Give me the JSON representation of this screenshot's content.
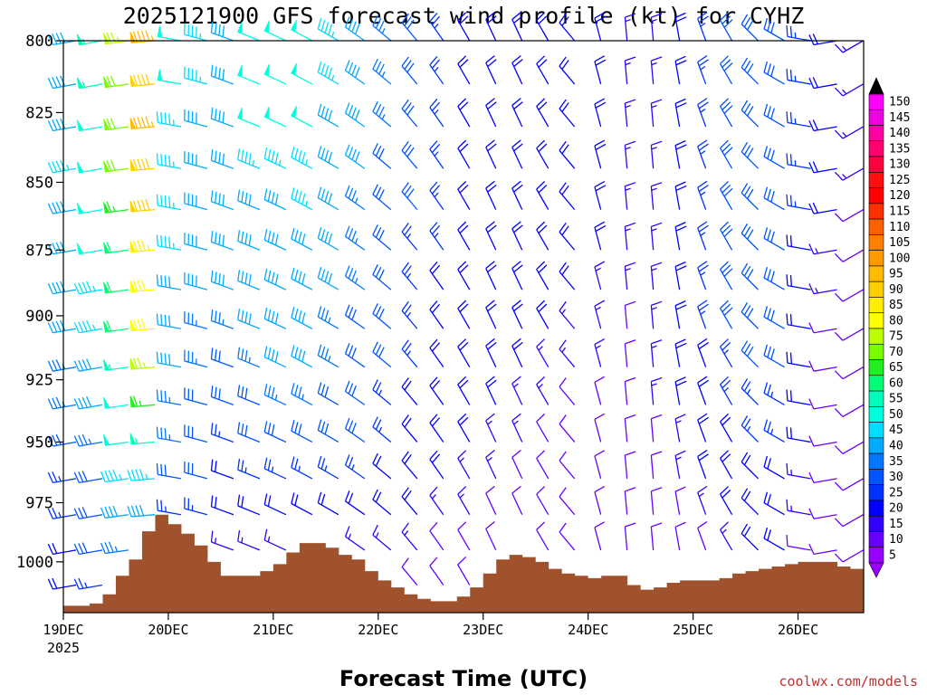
{
  "chart_data": {
    "type": "wind-profile",
    "title": "2025121900 GFS forecast wind profile (kt) for CYHZ",
    "xlabel": "Forecast Time (UTC)",
    "credit": "coolwx.com/models",
    "y_axis": {
      "label_values": [
        "800",
        "825",
        "850",
        "875",
        "900",
        "925",
        "950",
        "975",
        "1000"
      ],
      "range_hpa": [
        800,
        1022
      ],
      "inverted": true
    },
    "x_axis": {
      "tick_labels": [
        "19DEC",
        "20DEC",
        "21DEC",
        "22DEC",
        "23DEC",
        "24DEC",
        "25DEC",
        "26DEC"
      ],
      "year_label": "2025",
      "tick_hours": [
        0,
        24,
        48,
        72,
        96,
        120,
        144,
        168
      ],
      "range_hours": [
        0,
        183
      ]
    },
    "colorbar": {
      "labels": [
        "150",
        "145",
        "140",
        "135",
        "130",
        "125",
        "120",
        "115",
        "110",
        "105",
        "100",
        "95",
        "90",
        "85",
        "80",
        "75",
        "70",
        "65",
        "60",
        "55",
        "50",
        "45",
        "40",
        "35",
        "30",
        "25",
        "20",
        "15",
        "10",
        "5"
      ],
      "colors": [
        "#ff00ff",
        "#ee00e0",
        "#ff00a0",
        "#ff0070",
        "#ff0040",
        "#ff1010",
        "#ff0000",
        "#ff3000",
        "#ff6000",
        "#ff8000",
        "#ff9900",
        "#ffbb00",
        "#ffd000",
        "#ffee00",
        "#ffff00",
        "#bbff00",
        "#77ff00",
        "#22ee22",
        "#00ff77",
        "#00ffbb",
        "#00ffdd",
        "#00ddff",
        "#00aaff",
        "#0077ff",
        "#0055ff",
        "#0033ff",
        "#0000ff",
        "#3300ff",
        "#6600ff",
        "#9900ff"
      ]
    },
    "terrain": {
      "color": "#a0522d",
      "hours": [
        0,
        3,
        6,
        9,
        12,
        15,
        18,
        21,
        24,
        27,
        30,
        33,
        36,
        39,
        42,
        45,
        48,
        51,
        54,
        57,
        60,
        63,
        66,
        69,
        72,
        75,
        78,
        81,
        84,
        87,
        90,
        93,
        96,
        99,
        102,
        105,
        108,
        111,
        114,
        117,
        120,
        123,
        126,
        129,
        132,
        135,
        138,
        141,
        144,
        147,
        150,
        153,
        156,
        159,
        162,
        165,
        168,
        171,
        174,
        177,
        180,
        183
      ],
      "surface_hpa": [
        1019,
        1019,
        1018,
        1014,
        1006,
        999,
        987,
        980,
        984,
        988,
        993,
        1000,
        1006,
        1006,
        1006,
        1004,
        1001,
        996,
        992,
        992,
        994,
        997,
        999,
        1004,
        1008,
        1011,
        1014,
        1016,
        1017,
        1017,
        1015,
        1011,
        1005,
        999,
        997,
        998,
        1000,
        1003,
        1005,
        1006,
        1007,
        1006,
        1006,
        1010,
        1012,
        1011,
        1009,
        1008,
        1008,
        1008,
        1007,
        1005,
        1004,
        1003,
        1002,
        1001,
        1000,
        1000,
        1000,
        1002,
        1003,
        1003
      ]
    },
    "wind_levels_hpa": [
      800,
      815,
      830,
      845,
      860,
      875,
      890,
      905,
      920,
      935,
      950,
      965,
      980,
      995,
      1010
    ],
    "wind_hours": [
      0,
      6,
      12,
      18,
      24,
      30,
      36,
      42,
      48,
      54,
      60,
      66,
      72,
      78,
      84,
      90,
      96,
      102,
      108,
      114,
      120,
      126,
      132,
      138,
      144,
      150,
      156,
      162,
      168,
      174,
      180
    ],
    "wind_speed_kt": {
      "0": [
        42,
        42,
        42,
        45,
        42,
        42,
        40,
        38,
        35,
        33,
        30,
        27,
        25,
        22,
        20
      ],
      "6": [
        55,
        55,
        52,
        52,
        50,
        48,
        45,
        43,
        40,
        38,
        35,
        32,
        30,
        28,
        25
      ],
      "12": [
        75,
        72,
        72,
        70,
        65,
        62,
        60,
        58,
        55,
        52,
        48,
        45,
        40,
        35,
        30
      ],
      "18": [
        95,
        92,
        95,
        90,
        88,
        85,
        82,
        80,
        75,
        65,
        55,
        45,
        40,
        35,
        30
      ],
      "24": [
        50,
        48,
        47,
        46,
        45,
        43,
        42,
        40,
        38,
        36,
        34,
        30,
        25,
        20,
        15
      ],
      "30": [
        45,
        45,
        42,
        42,
        40,
        40,
        38,
        36,
        34,
        32,
        30,
        28,
        25,
        20,
        15
      ],
      "36": [
        42,
        42,
        42,
        40,
        38,
        38,
        38,
        35,
        32,
        30,
        25,
        22,
        20,
        15,
        12
      ],
      "42": [
        48,
        48,
        48,
        45,
        42,
        40,
        40,
        38,
        35,
        32,
        30,
        25,
        20,
        15,
        10
      ],
      "48": [
        48,
        48,
        48,
        45,
        42,
        42,
        40,
        40,
        38,
        35,
        30,
        25,
        20,
        15,
        10
      ],
      "54": [
        50,
        48,
        48,
        45,
        45,
        42,
        40,
        40,
        38,
        35,
        30,
        25,
        20,
        15,
        10
      ],
      "60": [
        45,
        45,
        42,
        40,
        40,
        38,
        38,
        35,
        35,
        32,
        30,
        25,
        20,
        15,
        10
      ],
      "66": [
        40,
        40,
        40,
        38,
        35,
        35,
        35,
        32,
        30,
        30,
        28,
        25,
        20,
        15,
        10
      ],
      "72": [
        35,
        35,
        35,
        32,
        30,
        30,
        30,
        28,
        28,
        25,
        25,
        22,
        20,
        15,
        10
      ],
      "78": [
        30,
        30,
        30,
        28,
        28,
        25,
        25,
        25,
        25,
        22,
        20,
        20,
        18,
        15,
        10
      ],
      "84": [
        25,
        25,
        25,
        25,
        25,
        25,
        22,
        22,
        22,
        20,
        20,
        18,
        15,
        12,
        10
      ],
      "90": [
        22,
        22,
        22,
        22,
        22,
        22,
        22,
        20,
        20,
        20,
        18,
        15,
        15,
        12,
        10
      ],
      "96": [
        22,
        22,
        22,
        22,
        20,
        20,
        20,
        20,
        20,
        18,
        15,
        15,
        12,
        10,
        8
      ],
      "102": [
        22,
        22,
        22,
        22,
        20,
        20,
        20,
        18,
        18,
        15,
        15,
        12,
        10,
        8,
        5
      ],
      "108": [
        20,
        20,
        20,
        20,
        20,
        20,
        18,
        18,
        15,
        15,
        12,
        12,
        10,
        8,
        5
      ],
      "114": [
        20,
        20,
        20,
        20,
        20,
        18,
        18,
        15,
        15,
        12,
        12,
        10,
        10,
        8,
        5
      ],
      "120": [
        18,
        18,
        18,
        18,
        18,
        18,
        15,
        15,
        15,
        12,
        12,
        10,
        10,
        8,
        5
      ],
      "126": [
        15,
        15,
        15,
        15,
        15,
        15,
        15,
        12,
        12,
        12,
        10,
        10,
        8,
        8,
        5
      ],
      "132": [
        15,
        15,
        15,
        15,
        15,
        15,
        15,
        15,
        15,
        15,
        12,
        12,
        10,
        8,
        5
      ],
      "138": [
        20,
        20,
        20,
        20,
        20,
        20,
        20,
        20,
        18,
        18,
        15,
        15,
        12,
        10,
        8
      ],
      "144": [
        25,
        25,
        25,
        25,
        25,
        25,
        25,
        25,
        22,
        22,
        20,
        18,
        15,
        12,
        10
      ],
      "150": [
        28,
        28,
        28,
        28,
        28,
        28,
        28,
        28,
        25,
        25,
        22,
        20,
        18,
        15,
        12
      ],
      "156": [
        30,
        30,
        30,
        30,
        30,
        30,
        30,
        28,
        28,
        25,
        25,
        22,
        20,
        18,
        15
      ],
      "162": [
        30,
        30,
        30,
        30,
        30,
        30,
        28,
        28,
        28,
        25,
        25,
        22,
        20,
        18,
        15
      ],
      "168": [
        25,
        25,
        25,
        25,
        25,
        22,
        22,
        20,
        20,
        18,
        18,
        15,
        15,
        12,
        10
      ],
      "174": [
        20,
        20,
        20,
        20,
        18,
        15,
        15,
        12,
        12,
        10,
        10,
        10,
        10,
        8,
        8
      ],
      "180": [
        15,
        15,
        15,
        15,
        12,
        10,
        10,
        10,
        10,
        10,
        8,
        8,
        8,
        8,
        5
      ]
    },
    "wind_dir_deg": {
      "0": 260,
      "6": 260,
      "12": 262,
      "18": 265,
      "24": 280,
      "30": 285,
      "36": 290,
      "42": 292,
      "48": 295,
      "54": 298,
      "60": 300,
      "66": 305,
      "72": 310,
      "78": 320,
      "84": 325,
      "90": 330,
      "96": 335,
      "102": 335,
      "108": 330,
      "114": 320,
      "120": 345,
      "126": 355,
      "132": 355,
      "138": 350,
      "144": 340,
      "150": 330,
      "156": 315,
      "162": 300,
      "168": 280,
      "174": 260,
      "180": 240
    }
  }
}
